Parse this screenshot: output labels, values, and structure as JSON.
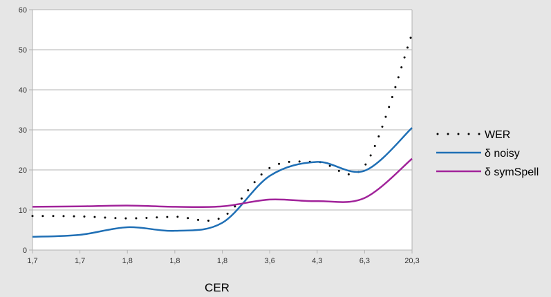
{
  "chart_data": {
    "type": "line",
    "title": "",
    "xlabel": "CER",
    "ylabel": "",
    "ylim": [
      0,
      60
    ],
    "yticks": [
      "0",
      "10",
      "20",
      "30",
      "40",
      "50",
      "60"
    ],
    "categories": [
      "1,7",
      "1,7",
      "1,8",
      "1,8",
      "1,8",
      "3,6",
      "4,3",
      "6,3",
      "20,3"
    ],
    "grid": true,
    "legend_position": "right",
    "series": [
      {
        "name": "WER",
        "style": "dotted",
        "color": "#000000",
        "values": [
          8.5,
          8.4,
          7.9,
          8.3,
          8.2,
          20.5,
          22.0,
          21.0,
          54.0
        ]
      },
      {
        "name": "δ noisy",
        "style": "solid",
        "color": "#1f6fb5",
        "values": [
          3.3,
          3.8,
          5.7,
          4.8,
          6.8,
          18.5,
          22.0,
          19.8,
          30.5
        ]
      },
      {
        "name": "δ symSpell",
        "style": "solid",
        "color": "#a1239a",
        "values": [
          10.8,
          10.9,
          11.1,
          10.8,
          10.9,
          12.6,
          12.2,
          13.0,
          22.8
        ]
      }
    ]
  }
}
